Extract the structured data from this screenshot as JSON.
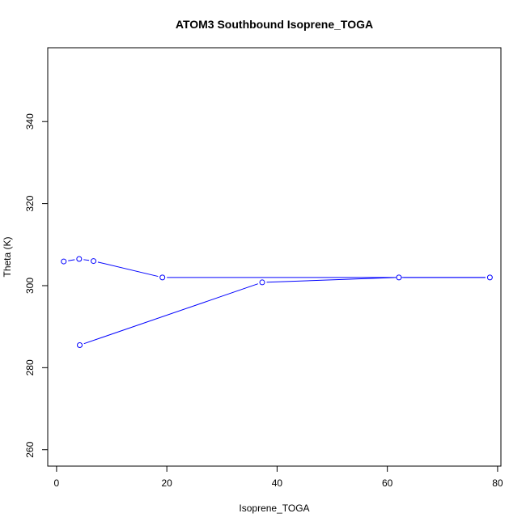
{
  "chart_data": {
    "type": "line",
    "title": "ATOM3 Southbound Isoprene_TOGA",
    "xlabel": "Isoprene_TOGA",
    "ylabel": "Theta (K)",
    "xlim": [
      -1.6,
      80.6
    ],
    "ylim": [
      256,
      358
    ],
    "x_ticks": [
      0,
      20,
      40,
      60,
      80
    ],
    "y_ticks": [
      260,
      280,
      300,
      320,
      340
    ],
    "grid": false,
    "colors": {
      "series": "#0000ff",
      "axis": "#000000"
    },
    "series": [
      {
        "points": [
          {
            "x": 4.2,
            "y": 285.5
          },
          {
            "x": 37.3,
            "y": 300.8
          },
          {
            "x": 62.1,
            "y": 302.0
          },
          {
            "x": 78.6,
            "y": 302.0
          },
          {
            "x": 19.2,
            "y": 302.0
          },
          {
            "x": 6.7,
            "y": 306.0
          },
          {
            "x": 4.1,
            "y": 306.5
          },
          {
            "x": 1.3,
            "y": 305.9
          }
        ]
      }
    ]
  }
}
